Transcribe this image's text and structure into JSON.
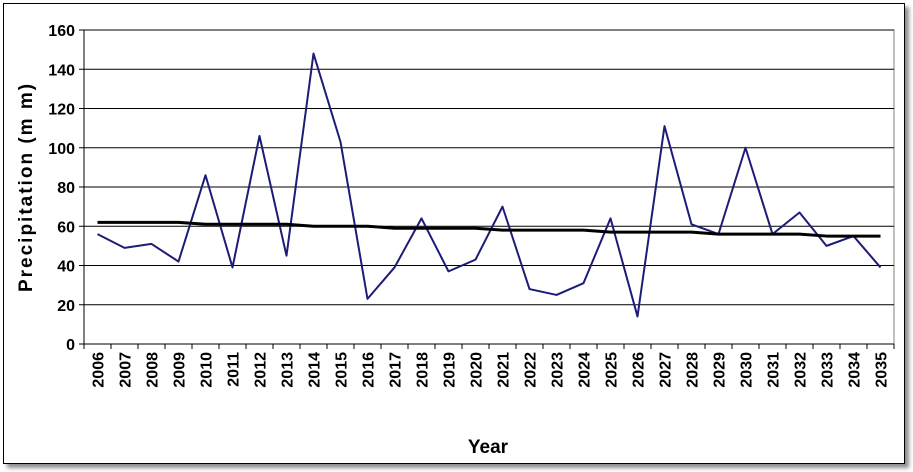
{
  "chart_data": {
    "type": "line",
    "xlabel": "Year",
    "ylabel": "Precipitation (m m)",
    "ylim": [
      0,
      160
    ],
    "yticks": [
      0,
      20,
      40,
      60,
      80,
      100,
      120,
      140,
      160
    ],
    "grid": true,
    "legend": "none",
    "categories": [
      "2006",
      "2007",
      "2008",
      "2009",
      "2010",
      "2011",
      "2012",
      "2013",
      "2014",
      "2015",
      "2016",
      "2017",
      "2018",
      "2019",
      "2020",
      "2021",
      "2022",
      "2023",
      "2024",
      "2025",
      "2026",
      "2027",
      "2028",
      "2029",
      "2030",
      "2031",
      "2032",
      "2033",
      "2034",
      "2035"
    ],
    "series": [
      {
        "color": "#1c1c78",
        "values": [
          56,
          49,
          51,
          42,
          86,
          39,
          106,
          45,
          148,
          103,
          23,
          39,
          64,
          37,
          43,
          70,
          28,
          25,
          31,
          64,
          14,
          111,
          61,
          56,
          100,
          56,
          67,
          50,
          55,
          39
        ]
      },
      {
        "color": "#000000",
        "kind": "trend",
        "values": [
          62,
          62,
          62,
          62,
          61,
          61,
          61,
          61,
          60,
          60,
          60,
          59,
          59,
          59,
          59,
          58,
          58,
          58,
          58,
          57,
          57,
          57,
          57,
          56,
          56,
          56,
          56,
          55,
          55,
          55
        ]
      }
    ]
  }
}
